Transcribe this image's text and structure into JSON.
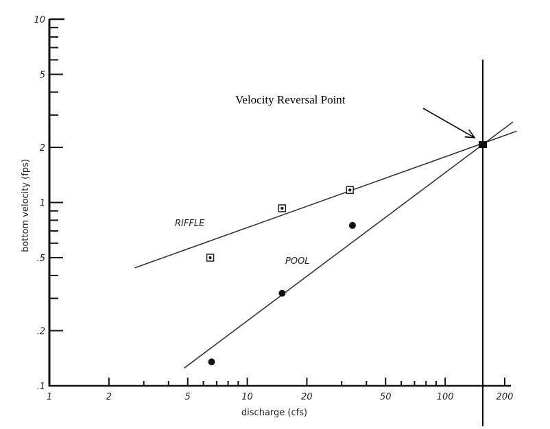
{
  "chart_data": {
    "type": "scatter",
    "title": "",
    "xlabel": "discharge (cfs)",
    "ylabel": "bottom velocity (fps)",
    "x_scale": "log",
    "y_scale": "log",
    "xlim": [
      1,
      200
    ],
    "ylim": [
      0.1,
      10
    ],
    "x_tick_labels": [
      "1",
      "2",
      "5",
      "10",
      "20",
      "50",
      "100",
      "200"
    ],
    "y_tick_labels": [
      ".1",
      ".2",
      ".5",
      "1",
      "2",
      "5",
      "10"
    ],
    "grid": false,
    "series": [
      {
        "name": "RIFFLE",
        "marker": "square-dot",
        "points": [
          {
            "x": 6.5,
            "y": 0.5
          },
          {
            "x": 15,
            "y": 0.93
          },
          {
            "x": 33,
            "y": 1.17
          }
        ],
        "fit_line": [
          {
            "x": 2.7,
            "y": 0.44
          },
          {
            "x": 230,
            "y": 2.45
          }
        ]
      },
      {
        "name": "POOL",
        "marker": "filled-circle",
        "points": [
          {
            "x": 6.6,
            "y": 0.135
          },
          {
            "x": 15,
            "y": 0.32
          },
          {
            "x": 34,
            "y": 0.75
          }
        ],
        "fit_line": [
          {
            "x": 4.8,
            "y": 0.125
          },
          {
            "x": 220,
            "y": 2.75
          }
        ]
      }
    ],
    "reversal_point": {
      "x": 155,
      "y": 2.07
    },
    "vertical_line_x": 155,
    "annotations": [
      {
        "text": "Velocity Reversal Point",
        "target": {
          "x": 155,
          "y": 2.07
        }
      }
    ]
  }
}
